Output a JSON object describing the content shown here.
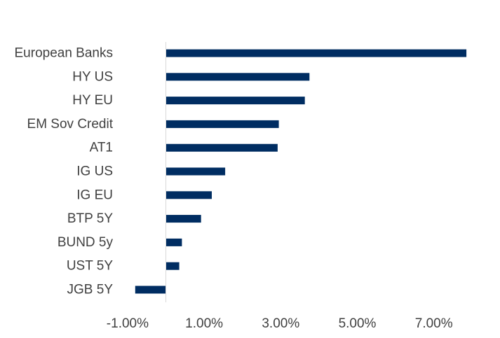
{
  "chart_data": {
    "type": "bar",
    "orientation": "horizontal",
    "categories": [
      "European Banks",
      "HY US",
      "HY EU",
      "EM Sov Credit",
      "AT1",
      "IG US",
      "IG EU",
      "BTP 5Y",
      "BUND 5y",
      "UST 5Y",
      "JGB 5Y"
    ],
    "values": [
      7.85,
      3.75,
      3.63,
      2.95,
      2.92,
      1.55,
      1.2,
      0.92,
      0.42,
      0.35,
      -0.8
    ],
    "xlim": [
      -1.5,
      8.0
    ],
    "xticks": [
      -1,
      1,
      3,
      5,
      7
    ],
    "xtick_labels": [
      "-1.00%",
      "1.00%",
      "3.00%",
      "5.00%",
      "7.00%"
    ],
    "title": "",
    "xlabel": "",
    "ylabel": "",
    "grid": false,
    "legend": "none",
    "bar_color": "#002D62",
    "axis_color": "#D9D9D9",
    "label_color": "#404040"
  }
}
